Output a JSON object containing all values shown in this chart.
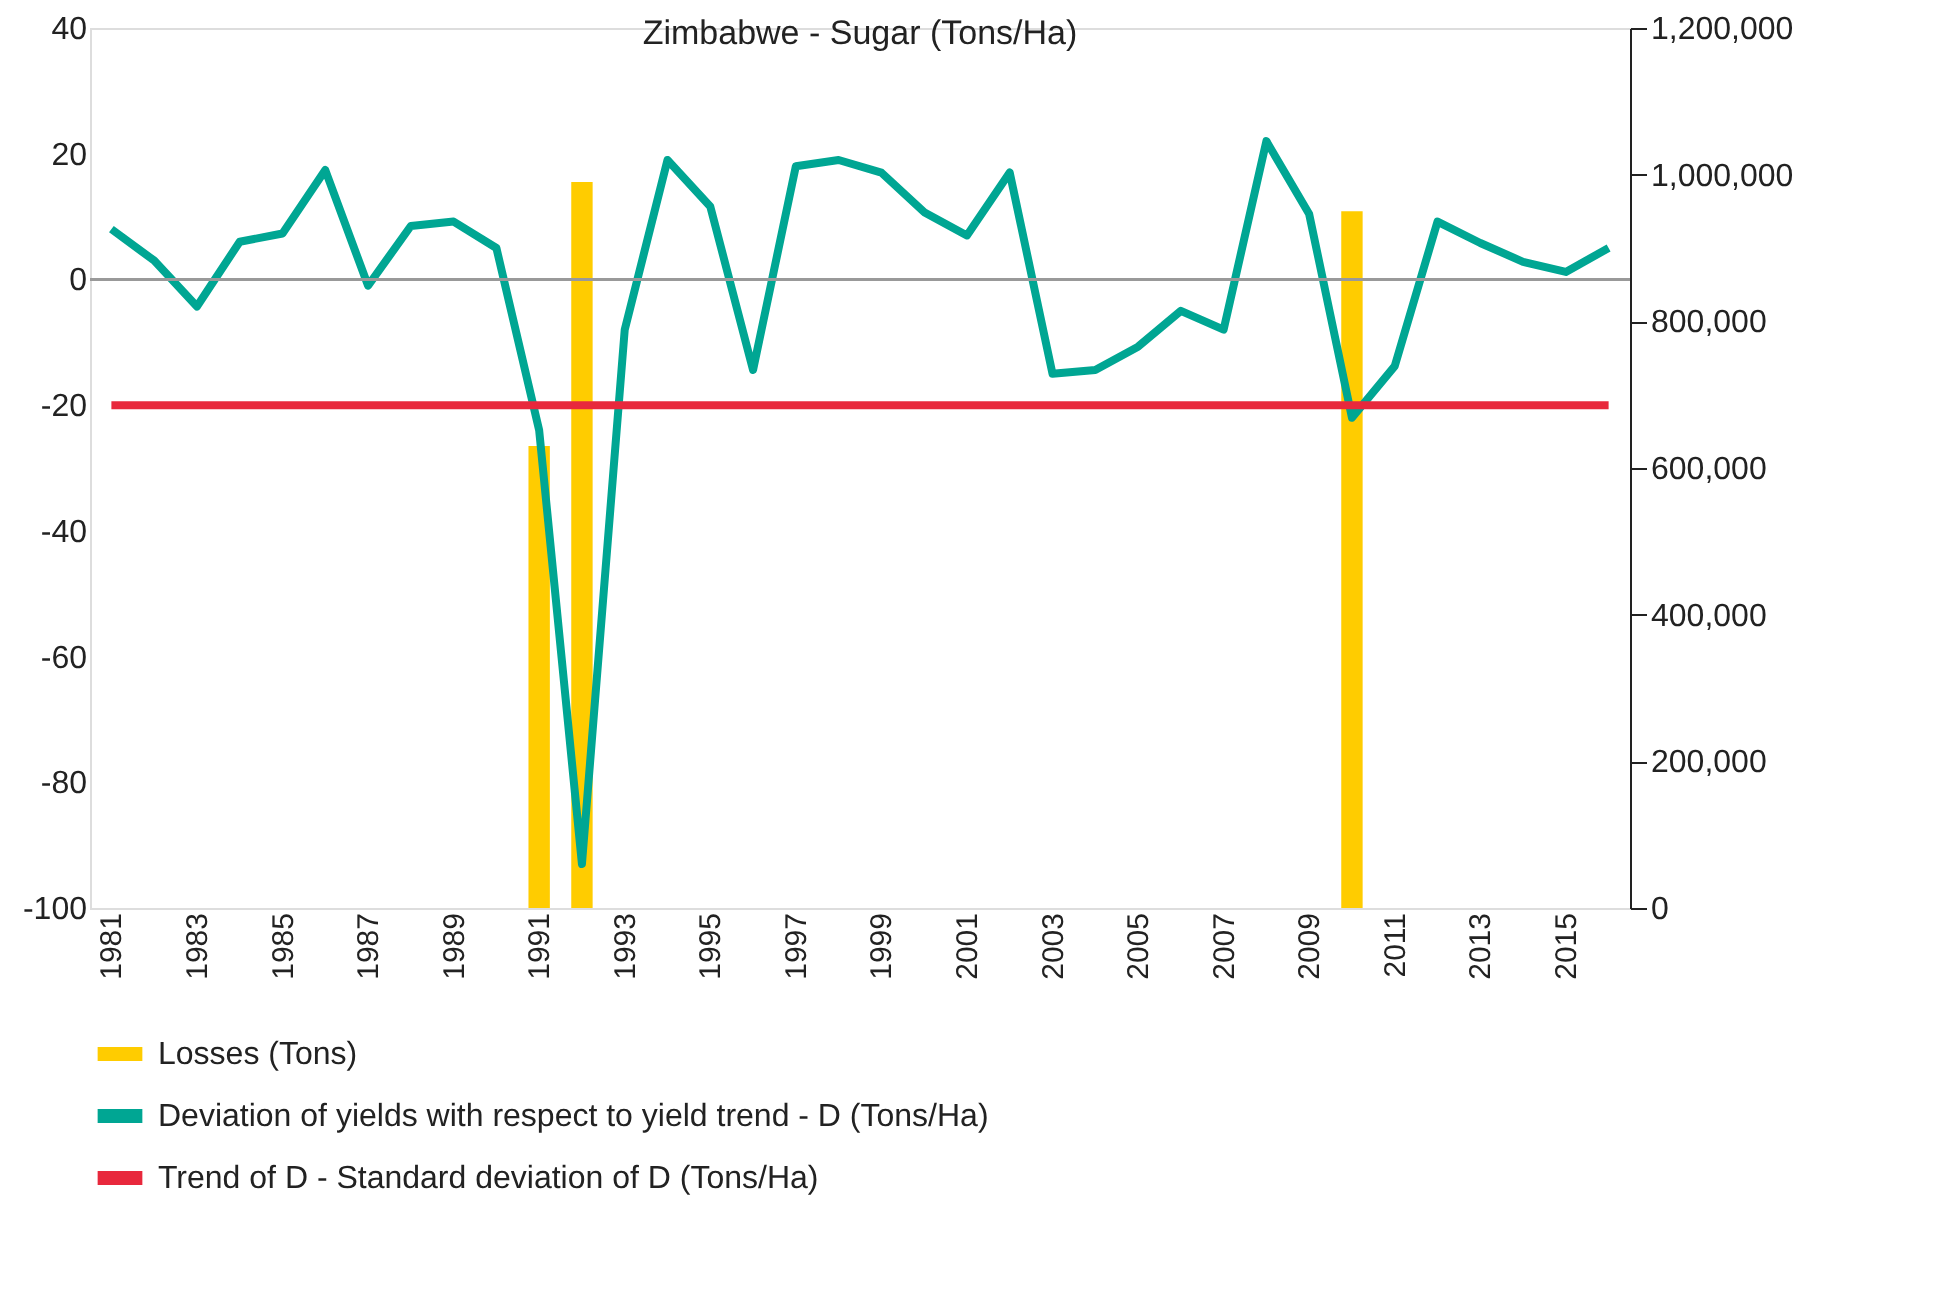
{
  "chart_data": {
    "type": "line",
    "title": "Zimbabwe - Sugar (Tons/Ha)",
    "categories": [
      "1981",
      null,
      "1983",
      null,
      "1985",
      null,
      "1987",
      null,
      "1989",
      null,
      "1991",
      null,
      "1993",
      null,
      "1995",
      null,
      "1997",
      null,
      "1999",
      null,
      "2001",
      null,
      "2003",
      null,
      "2005",
      null,
      "2007",
      null,
      "2009",
      null,
      "2011",
      null,
      "2013",
      null,
      "2015",
      null
    ],
    "series": [
      {
        "name": "Losses (Tons)",
        "type": "bar",
        "axis": "y2",
        "color": "#ffcc00",
        "values": [
          null,
          null,
          null,
          null,
          null,
          null,
          null,
          null,
          null,
          null,
          630000,
          990000,
          null,
          null,
          null,
          null,
          null,
          null,
          null,
          null,
          null,
          null,
          null,
          null,
          null,
          null,
          null,
          null,
          null,
          950000,
          null,
          null,
          null,
          null,
          null,
          null
        ]
      },
      {
        "name": "Deviation of yields with respect to yield trend - D (Tons/Ha)",
        "color": "#00a693",
        "values": [
          8,
          3,
          -4.3,
          6,
          7.3,
          17.4,
          -1,
          8.5,
          9.2,
          5,
          -24,
          -93,
          -8,
          19,
          11.6,
          -14.4,
          18,
          19,
          17,
          10.7,
          7,
          17,
          -15,
          -14.4,
          -10.7,
          -5,
          -8,
          22,
          10.4,
          -22,
          -13.8,
          9.2,
          5.8,
          2.8,
          1.2,
          5
        ]
      },
      {
        "name": "Trend of D - Standard deviation of D (Tons/Ha)",
        "color": "#e8283c",
        "values": [
          -20,
          -20,
          -20,
          -20,
          -20,
          -20,
          -20,
          -20,
          -20,
          -20,
          -20,
          -20,
          -20,
          -20,
          -20,
          -20,
          -20,
          -20,
          -20,
          -20,
          -20,
          -20,
          -20,
          -20,
          -20,
          -20,
          -20,
          -20,
          -20,
          -20,
          -20,
          -20,
          -20,
          -20,
          -20,
          -20
        ]
      }
    ],
    "ylim": [
      -100,
      40
    ],
    "yticks": [
      -100,
      -80,
      -60,
      -40,
      -20,
      0,
      20,
      40
    ],
    "y2lim": [
      0,
      1200000
    ],
    "y2ticks": [
      {
        "value": 0,
        "label": "0"
      },
      {
        "value": 200000,
        "label": "200,000"
      },
      {
        "value": 400000,
        "label": "400,000"
      },
      {
        "value": 600000,
        "label": "600,000"
      },
      {
        "value": 800000,
        "label": "800,000"
      },
      {
        "value": 1000000,
        "label": "1,000,000"
      },
      {
        "value": 1200000,
        "label": "1,200,000"
      }
    ],
    "ref_lines": [
      {
        "axis": "y",
        "value": 0,
        "label": null,
        "color": "#999999"
      }
    ],
    "grid": false,
    "legend": "bottom"
  }
}
